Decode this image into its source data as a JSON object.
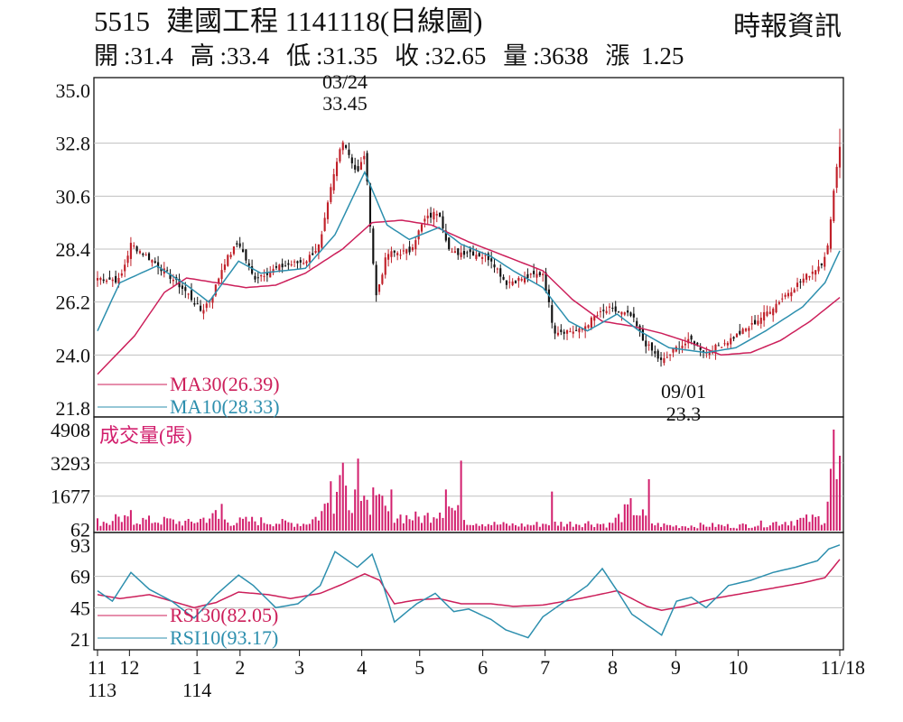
{
  "header": {
    "code": "5515",
    "name_date": "建國工程 1141118(日線圖)",
    "source": "時報資訊",
    "quote": [
      {
        "label": "開",
        "value": "31.4"
      },
      {
        "label": "高",
        "value": "33.4"
      },
      {
        "label": "低",
        "value": "31.35"
      },
      {
        "label": "收",
        "value": "32.65"
      },
      {
        "label": "量",
        "value": "3638"
      },
      {
        "label": "漲",
        "value": "1.25"
      }
    ]
  },
  "chart_data": {
    "type": "candlestick",
    "colors": {
      "up": "#c01f28",
      "down": "#111111",
      "ma30": "#cc1f5a",
      "ma10": "#2d8fae",
      "volume": "#d21f6d",
      "rsi30": "#cc1f5a",
      "rsi10": "#2d8fae",
      "grid": "#c0c0c0"
    },
    "price_panel": {
      "yticks": [
        "35.0",
        "32.8",
        "30.6",
        "28.4",
        "26.2",
        "24.0",
        "21.8"
      ],
      "ylim": [
        21.8,
        35.0
      ],
      "annotations": [
        {
          "date": "03/24",
          "value": "33.45"
        },
        {
          "date": "09/01",
          "value": "23.3"
        }
      ],
      "legend": [
        {
          "label": "MA30",
          "value": "(26.39)"
        },
        {
          "label": "MA10",
          "value": "(28.33)"
        }
      ]
    },
    "volume_panel": {
      "label": "成交量(張)",
      "yticks": [
        "4908",
        "3293",
        "1677",
        "62"
      ],
      "ylim": [
        62,
        4908
      ]
    },
    "rsi_panel": {
      "yticks": [
        "93",
        "69",
        "45",
        "21"
      ],
      "ylim": [
        21,
        93
      ],
      "legend": [
        {
          "label": "RSI30",
          "value": "(82.05)"
        },
        {
          "label": "RSI10",
          "value": "(93.17)"
        }
      ]
    },
    "x_axis": {
      "ticks": [
        {
          "label": "11",
          "pos": 0
        },
        {
          "label": "12",
          "pos": 0.043
        },
        {
          "label": "1",
          "pos": 0.134
        },
        {
          "label": "2",
          "pos": 0.192
        },
        {
          "label": "3",
          "pos": 0.272
        },
        {
          "label": "4",
          "pos": 0.356
        },
        {
          "label": "5",
          "pos": 0.434
        },
        {
          "label": "6",
          "pos": 0.519
        },
        {
          "label": "7",
          "pos": 0.603
        },
        {
          "label": "8",
          "pos": 0.694
        },
        {
          "label": "9",
          "pos": 0.779
        },
        {
          "label": "10",
          "pos": 0.863
        },
        {
          "label": "11/18",
          "pos": 1.0
        }
      ],
      "year_labels": [
        {
          "label": "113",
          "pos": 0
        },
        {
          "label": "114",
          "pos": 0.134
        }
      ]
    },
    "close_keypoints": [
      [
        0,
        27.2
      ],
      [
        0.03,
        27.1
      ],
      [
        0.045,
        28.6
      ],
      [
        0.075,
        27.9
      ],
      [
        0.1,
        27.2
      ],
      [
        0.12,
        26.6
      ],
      [
        0.14,
        25.8
      ],
      [
        0.155,
        26.5
      ],
      [
        0.17,
        27.8
      ],
      [
        0.19,
        28.7
      ],
      [
        0.21,
        27.2
      ],
      [
        0.25,
        27.7
      ],
      [
        0.28,
        27.9
      ],
      [
        0.3,
        28.6
      ],
      [
        0.315,
        31.0
      ],
      [
        0.33,
        33.0
      ],
      [
        0.35,
        31.5
      ],
      [
        0.36,
        32.4
      ],
      [
        0.375,
        26.4
      ],
      [
        0.39,
        28.2
      ],
      [
        0.42,
        28.3
      ],
      [
        0.44,
        29.6
      ],
      [
        0.46,
        30.0
      ],
      [
        0.475,
        28.2
      ],
      [
        0.5,
        28.3
      ],
      [
        0.53,
        28.0
      ],
      [
        0.55,
        27.0
      ],
      [
        0.6,
        27.4
      ],
      [
        0.615,
        25.0
      ],
      [
        0.65,
        25.0
      ],
      [
        0.67,
        25.6
      ],
      [
        0.69,
        25.9
      ],
      [
        0.72,
        25.6
      ],
      [
        0.735,
        24.6
      ],
      [
        0.76,
        23.7
      ],
      [
        0.78,
        24.3
      ],
      [
        0.8,
        24.6
      ],
      [
        0.82,
        24.1
      ],
      [
        0.85,
        24.6
      ],
      [
        0.88,
        25.2
      ],
      [
        0.91,
        26.0
      ],
      [
        0.93,
        26.6
      ],
      [
        0.96,
        27.4
      ],
      [
        0.975,
        27.8
      ],
      [
        0.985,
        28.6
      ],
      [
        0.992,
        31.0
      ],
      [
        1.0,
        32.65
      ]
    ],
    "ma10_keypoints": [
      [
        0,
        25.0
      ],
      [
        0.03,
        27.0
      ],
      [
        0.08,
        27.7
      ],
      [
        0.12,
        26.9
      ],
      [
        0.15,
        26.2
      ],
      [
        0.19,
        27.9
      ],
      [
        0.22,
        27.4
      ],
      [
        0.28,
        27.6
      ],
      [
        0.32,
        29.0
      ],
      [
        0.36,
        31.6
      ],
      [
        0.39,
        29.4
      ],
      [
        0.42,
        28.8
      ],
      [
        0.46,
        29.3
      ],
      [
        0.49,
        28.6
      ],
      [
        0.53,
        28.1
      ],
      [
        0.56,
        27.5
      ],
      [
        0.6,
        26.8
      ],
      [
        0.635,
        25.4
      ],
      [
        0.66,
        25.0
      ],
      [
        0.7,
        25.7
      ],
      [
        0.73,
        25.0
      ],
      [
        0.77,
        24.3
      ],
      [
        0.82,
        24.1
      ],
      [
        0.86,
        24.3
      ],
      [
        0.9,
        25.0
      ],
      [
        0.95,
        26.0
      ],
      [
        0.98,
        27.0
      ],
      [
        1.0,
        28.33
      ]
    ],
    "ma30_keypoints": [
      [
        0,
        23.2
      ],
      [
        0.05,
        24.8
      ],
      [
        0.09,
        26.6
      ],
      [
        0.12,
        27.2
      ],
      [
        0.16,
        27.0
      ],
      [
        0.2,
        26.8
      ],
      [
        0.24,
        26.9
      ],
      [
        0.28,
        27.4
      ],
      [
        0.33,
        28.4
      ],
      [
        0.37,
        29.5
      ],
      [
        0.41,
        29.6
      ],
      [
        0.45,
        29.4
      ],
      [
        0.5,
        28.7
      ],
      [
        0.55,
        28.1
      ],
      [
        0.6,
        27.5
      ],
      [
        0.64,
        26.3
      ],
      [
        0.68,
        25.4
      ],
      [
        0.72,
        25.2
      ],
      [
        0.76,
        24.9
      ],
      [
        0.8,
        24.5
      ],
      [
        0.84,
        24.0
      ],
      [
        0.88,
        24.1
      ],
      [
        0.92,
        24.6
      ],
      [
        0.96,
        25.4
      ],
      [
        1.0,
        26.39
      ]
    ],
    "volume_keypoints": [
      [
        0,
        400
      ],
      [
        0.04,
        700
      ],
      [
        0.07,
        650
      ],
      [
        0.1,
        600
      ],
      [
        0.125,
        500
      ],
      [
        0.15,
        900
      ],
      [
        0.18,
        550
      ],
      [
        0.21,
        650
      ],
      [
        0.25,
        500
      ],
      [
        0.28,
        450
      ],
      [
        0.3,
        1000
      ],
      [
        0.315,
        2200
      ],
      [
        0.33,
        2900
      ],
      [
        0.345,
        1900
      ],
      [
        0.36,
        1500
      ],
      [
        0.375,
        1700
      ],
      [
        0.39,
        1200
      ],
      [
        0.41,
        900
      ],
      [
        0.44,
        800
      ],
      [
        0.47,
        1700
      ],
      [
        0.5,
        600
      ],
      [
        0.54,
        400
      ],
      [
        0.58,
        350
      ],
      [
        0.61,
        500
      ],
      [
        0.63,
        450
      ],
      [
        0.66,
        500
      ],
      [
        0.69,
        400
      ],
      [
        0.72,
        1500
      ],
      [
        0.75,
        400
      ],
      [
        0.78,
        300
      ],
      [
        0.82,
        350
      ],
      [
        0.86,
        300
      ],
      [
        0.9,
        450
      ],
      [
        0.94,
        650
      ],
      [
        0.98,
        800
      ],
      [
        0.99,
        4908
      ],
      [
        1.0,
        3638
      ]
    ],
    "volume_spikes": [
      [
        0.0,
        600
      ],
      [
        0.026,
        800
      ],
      [
        0.045,
        1000
      ],
      [
        0.095,
        600
      ],
      [
        0.158,
        1000
      ],
      [
        0.168,
        1300
      ],
      [
        0.315,
        2400
      ],
      [
        0.326,
        2700
      ],
      [
        0.331,
        3300
      ],
      [
        0.345,
        2000
      ],
      [
        0.352,
        3500
      ],
      [
        0.362,
        1500
      ],
      [
        0.372,
        2100
      ],
      [
        0.384,
        1700
      ],
      [
        0.395,
        2000
      ],
      [
        0.47,
        2000
      ],
      [
        0.489,
        3400
      ],
      [
        0.612,
        1900
      ],
      [
        0.742,
        2500
      ],
      [
        0.992,
        4908
      ],
      [
        0.996,
        2500
      ],
      [
        1.0,
        3638
      ]
    ],
    "rsi30_keypoints": [
      [
        0,
        55
      ],
      [
        0.03,
        52
      ],
      [
        0.07,
        55
      ],
      [
        0.1,
        50
      ],
      [
        0.13,
        45
      ],
      [
        0.16,
        49
      ],
      [
        0.19,
        57
      ],
      [
        0.23,
        55
      ],
      [
        0.26,
        52
      ],
      [
        0.3,
        56
      ],
      [
        0.33,
        63
      ],
      [
        0.36,
        71
      ],
      [
        0.38,
        66
      ],
      [
        0.4,
        48
      ],
      [
        0.43,
        51
      ],
      [
        0.46,
        52
      ],
      [
        0.49,
        48
      ],
      [
        0.53,
        48
      ],
      [
        0.56,
        46
      ],
      [
        0.6,
        47
      ],
      [
        0.65,
        52
      ],
      [
        0.7,
        58
      ],
      [
        0.74,
        46
      ],
      [
        0.76,
        43
      ],
      [
        0.79,
        46
      ],
      [
        0.83,
        52
      ],
      [
        0.87,
        56
      ],
      [
        0.91,
        60
      ],
      [
        0.95,
        64
      ],
      [
        0.98,
        68
      ],
      [
        1.0,
        82.05
      ]
    ],
    "rsi10_keypoints": [
      [
        0,
        58
      ],
      [
        0.02,
        50
      ],
      [
        0.045,
        72
      ],
      [
        0.07,
        59
      ],
      [
        0.1,
        50
      ],
      [
        0.13,
        37
      ],
      [
        0.16,
        55
      ],
      [
        0.19,
        70
      ],
      [
        0.21,
        62
      ],
      [
        0.24,
        45
      ],
      [
        0.27,
        48
      ],
      [
        0.3,
        62
      ],
      [
        0.32,
        88
      ],
      [
        0.35,
        76
      ],
      [
        0.37,
        86
      ],
      [
        0.385,
        62
      ],
      [
        0.4,
        34
      ],
      [
        0.43,
        48
      ],
      [
        0.455,
        56
      ],
      [
        0.48,
        42
      ],
      [
        0.5,
        44
      ],
      [
        0.53,
        36
      ],
      [
        0.55,
        28
      ],
      [
        0.58,
        22
      ],
      [
        0.6,
        38
      ],
      [
        0.63,
        50
      ],
      [
        0.66,
        62
      ],
      [
        0.68,
        75
      ],
      [
        0.7,
        58
      ],
      [
        0.72,
        40
      ],
      [
        0.74,
        32
      ],
      [
        0.76,
        24
      ],
      [
        0.78,
        50
      ],
      [
        0.8,
        53
      ],
      [
        0.82,
        45
      ],
      [
        0.85,
        62
      ],
      [
        0.88,
        66
      ],
      [
        0.91,
        72
      ],
      [
        0.94,
        76
      ],
      [
        0.97,
        81
      ],
      [
        0.985,
        90
      ],
      [
        1.0,
        93.17
      ]
    ]
  }
}
